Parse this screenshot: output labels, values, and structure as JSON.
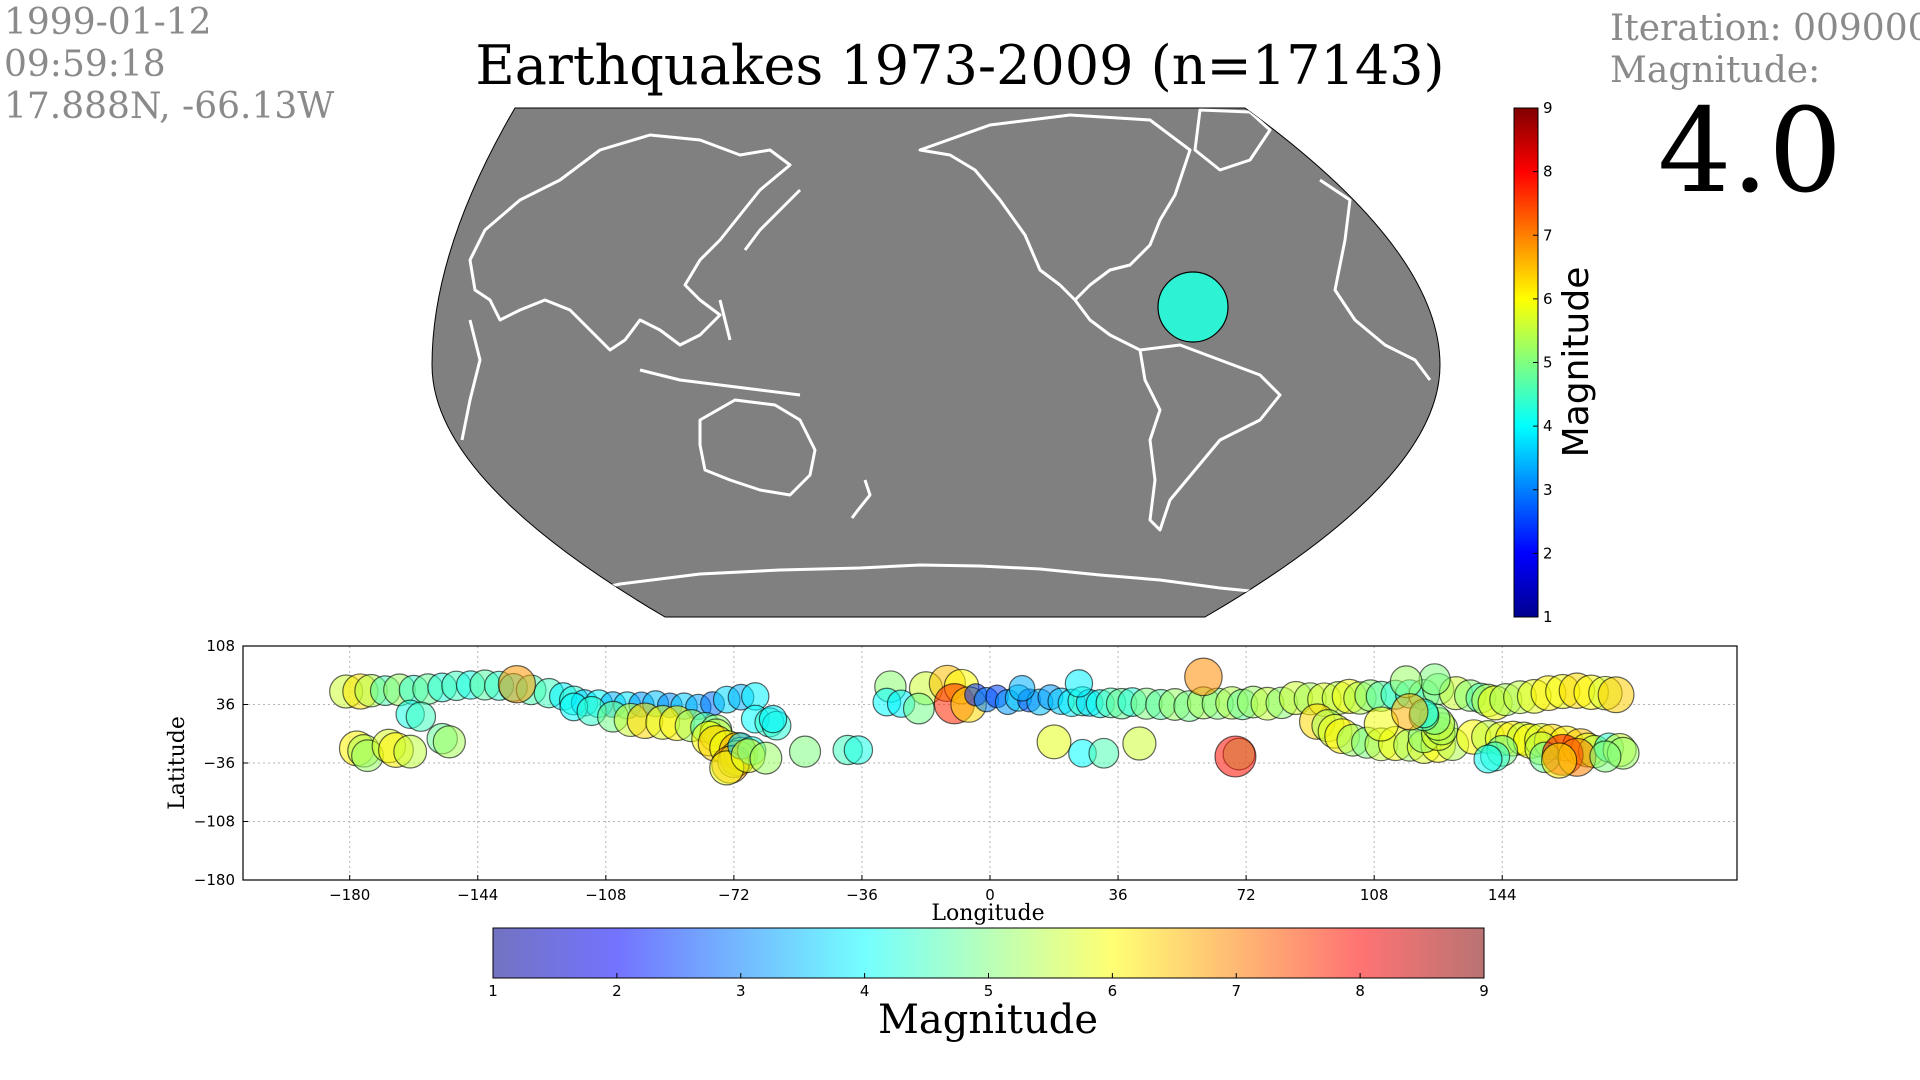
{
  "info": {
    "date": "1999-01-12",
    "time": "09:59:18",
    "location": "17.888N, -66.13W"
  },
  "title": "Earthquakes 1973-2009 (n=17143)",
  "status": {
    "iteration": "Iteration: 009000",
    "magnitude_label": "Magnitude:",
    "magnitude_value": "4.0"
  },
  "colors": {
    "ocean": "#808080",
    "coast": "#ffffff",
    "current_quake": "#2ef2d4"
  },
  "chart_data": [
    {
      "type": "map",
      "projection": "robinson",
      "center_longitude": -150,
      "current_event": {
        "lat": 17.888,
        "lon": -66.13,
        "magnitude": 4.0
      },
      "colorbar": {
        "label": "Magnitude",
        "ticks": [
          "1",
          "2",
          "3",
          "4",
          "5",
          "6",
          "7",
          "8",
          "9"
        ],
        "colormap": "jet",
        "orientation": "vertical"
      }
    },
    {
      "type": "scatter",
      "xlabel": "Longitude",
      "ylabel": "Latitude",
      "xlim": [
        -210,
        210
      ],
      "ylim": [
        -180,
        108
      ],
      "xticks": [
        -180,
        -144,
        -108,
        -72,
        -36,
        0,
        36,
        72,
        108,
        144
      ],
      "xtick_labels": [
        "−180",
        "−144",
        "−108",
        "−72",
        "−36",
        "0",
        "36",
        "72",
        "108",
        "144"
      ],
      "yticks": [
        108,
        36,
        -36,
        -108,
        -180
      ],
      "ytick_labels": [
        "108",
        "36",
        "−36",
        "−108",
        "−180"
      ],
      "grid": true,
      "points": [
        {
          "x": -181,
          "y": 52,
          "m": 5.6
        },
        {
          "x": -177,
          "y": 52,
          "m": 6.2
        },
        {
          "x": -174,
          "y": 53,
          "m": 5.4
        },
        {
          "x": -170,
          "y": 53,
          "m": 4.6
        },
        {
          "x": -166,
          "y": 54,
          "m": 5.2
        },
        {
          "x": -162,
          "y": 54,
          "m": 4.4
        },
        {
          "x": -158,
          "y": 55,
          "m": 4.8
        },
        {
          "x": -154,
          "y": 57,
          "m": 4.3
        },
        {
          "x": -150,
          "y": 59,
          "m": 4.5
        },
        {
          "x": -146,
          "y": 60,
          "m": 4.2
        },
        {
          "x": -142,
          "y": 60,
          "m": 4.7
        },
        {
          "x": -138,
          "y": 59,
          "m": 4.4
        },
        {
          "x": -134,
          "y": 57,
          "m": 4.1
        },
        {
          "x": -129,
          "y": 54,
          "m": 4.6
        },
        {
          "x": -124,
          "y": 50,
          "m": 4.5
        },
        {
          "x": -120,
          "y": 46,
          "m": 3.9
        },
        {
          "x": -117,
          "y": 41,
          "m": 4.3
        },
        {
          "x": -114,
          "y": 38,
          "m": 3.6
        },
        {
          "x": -110,
          "y": 37,
          "m": 4.0
        },
        {
          "x": -106,
          "y": 36,
          "m": 3.4
        },
        {
          "x": -102,
          "y": 35,
          "m": 3.8
        },
        {
          "x": -98,
          "y": 36,
          "m": 3.2
        },
        {
          "x": -94,
          "y": 37,
          "m": 3.5
        },
        {
          "x": -90,
          "y": 35,
          "m": 3.1
        },
        {
          "x": -86,
          "y": 34,
          "m": 3.6
        },
        {
          "x": -82,
          "y": 33,
          "m": 3.3
        },
        {
          "x": -78,
          "y": 37,
          "m": 2.9
        },
        {
          "x": -74,
          "y": 42,
          "m": 3.7
        },
        {
          "x": -70,
          "y": 45,
          "m": 3.4
        },
        {
          "x": -66,
          "y": 46,
          "m": 3.9
        },
        {
          "x": -163,
          "y": 24,
          "m": 4.2
        },
        {
          "x": -160,
          "y": 21,
          "m": 4.5
        },
        {
          "x": -117,
          "y": 33,
          "m": 4.0
        },
        {
          "x": -112,
          "y": 28,
          "m": 4.4
        },
        {
          "x": -106,
          "y": 21,
          "m": 4.9
        },
        {
          "x": -101,
          "y": 17,
          "m": 5.6
        },
        {
          "x": -97,
          "y": 16,
          "m": 6.3
        },
        {
          "x": -92,
          "y": 14,
          "m": 5.8
        },
        {
          "x": -88,
          "y": 13,
          "m": 6.1
        },
        {
          "x": -84,
          "y": 10,
          "m": 5.3
        },
        {
          "x": -80,
          "y": 8,
          "m": 4.6
        },
        {
          "x": -77,
          "y": 4,
          "m": 5.1
        },
        {
          "x": -77,
          "y": -2,
          "m": 5.5
        },
        {
          "x": -79,
          "y": -6,
          "m": 6.0
        },
        {
          "x": -77,
          "y": -12,
          "m": 6.4
        },
        {
          "x": -74,
          "y": -17,
          "m": 5.9
        },
        {
          "x": -71,
          "y": -21,
          "m": 6.6
        },
        {
          "x": -70,
          "y": -25,
          "m": 5.7
        },
        {
          "x": -71,
          "y": -30,
          "m": 6.2
        },
        {
          "x": -72,
          "y": -34,
          "m": 5.4
        },
        {
          "x": -73,
          "y": -38,
          "m": 6.8
        },
        {
          "x": -74,
          "y": -42,
          "m": 5.9
        },
        {
          "x": -70,
          "y": -15,
          "m": 3.6
        },
        {
          "x": -67,
          "y": -21,
          "m": 4.2
        },
        {
          "x": -68,
          "y": -27,
          "m": 5.8
        },
        {
          "x": -63,
          "y": -30,
          "m": 5.2
        },
        {
          "x": -66,
          "y": 18,
          "m": 4.0
        },
        {
          "x": -62,
          "y": 14,
          "m": 4.4
        },
        {
          "x": -60,
          "y": 10,
          "m": 4.3
        },
        {
          "x": -61,
          "y": 18,
          "m": 3.9
        },
        {
          "x": -52,
          "y": -22,
          "m": 5.0
        },
        {
          "x": -40,
          "y": -20,
          "m": 4.5
        },
        {
          "x": -37,
          "y": -20,
          "m": 4.2
        },
        {
          "x": -28,
          "y": 58,
          "m": 5.1
        },
        {
          "x": -18,
          "y": 56,
          "m": 5.6
        },
        {
          "x": -29,
          "y": 39,
          "m": 4.0
        },
        {
          "x": -25,
          "y": 37,
          "m": 3.9
        },
        {
          "x": -20,
          "y": 31,
          "m": 4.9
        },
        {
          "x": -12,
          "y": 62,
          "m": 6.5
        },
        {
          "x": -8,
          "y": 58,
          "m": 6.0
        },
        {
          "x": -10,
          "y": 37,
          "m": 7.7
        },
        {
          "x": -6,
          "y": 36,
          "m": 6.3
        },
        {
          "x": -4,
          "y": 48,
          "m": 2.4
        },
        {
          "x": -1,
          "y": 42,
          "m": 3.0
        },
        {
          "x": 2,
          "y": 46,
          "m": 2.5
        },
        {
          "x": 5,
          "y": 39,
          "m": 3.2
        },
        {
          "x": 8,
          "y": 44,
          "m": 3.6
        },
        {
          "x": 11,
          "y": 41,
          "m": 2.6
        },
        {
          "x": 14,
          "y": 39,
          "m": 3.5
        },
        {
          "x": 17,
          "y": 45,
          "m": 3.2
        },
        {
          "x": 20,
          "y": 40,
          "m": 3.6
        },
        {
          "x": 23,
          "y": 38,
          "m": 3.9
        },
        {
          "x": 26,
          "y": 40,
          "m": 4.4
        },
        {
          "x": 28,
          "y": 38,
          "m": 3.7
        },
        {
          "x": 31,
          "y": 37,
          "m": 4.1
        },
        {
          "x": 34,
          "y": 38,
          "m": 4.6
        },
        {
          "x": 37,
          "y": 37,
          "m": 4.8
        },
        {
          "x": 40,
          "y": 39,
          "m": 4.3
        },
        {
          "x": 44,
          "y": 37,
          "m": 5.0
        },
        {
          "x": 48,
          "y": 36,
          "m": 4.7
        },
        {
          "x": 52,
          "y": 36,
          "m": 5.2
        },
        {
          "x": 56,
          "y": 34,
          "m": 4.9
        },
        {
          "x": 60,
          "y": 38,
          "m": 5.3
        },
        {
          "x": 64,
          "y": 37,
          "m": 5.0
        },
        {
          "x": 68,
          "y": 38,
          "m": 5.4
        },
        {
          "x": 71,
          "y": 36,
          "m": 4.8
        },
        {
          "x": 74,
          "y": 39,
          "m": 5.2
        },
        {
          "x": 78,
          "y": 37,
          "m": 5.5
        },
        {
          "x": 82,
          "y": 38,
          "m": 5.1
        },
        {
          "x": 86,
          "y": 44,
          "m": 5.6
        },
        {
          "x": 90,
          "y": 43,
          "m": 5.3
        },
        {
          "x": 94,
          "y": 42,
          "m": 5.7
        },
        {
          "x": 98,
          "y": 44,
          "m": 5.5
        },
        {
          "x": 101,
          "y": 46,
          "m": 5.9
        },
        {
          "x": 104,
          "y": 44,
          "m": 5.4
        },
        {
          "x": 107,
          "y": 47,
          "m": 5.1
        },
        {
          "x": 110,
          "y": 46,
          "m": 4.7
        },
        {
          "x": 114,
          "y": 48,
          "m": 4.4
        },
        {
          "x": 118,
          "y": 49,
          "m": 4.2
        },
        {
          "x": 122,
          "y": 48,
          "m": 4.8
        },
        {
          "x": 126,
          "y": 55,
          "m": 5.0
        },
        {
          "x": 131,
          "y": 50,
          "m": 5.6
        },
        {
          "x": 135,
          "y": 47,
          "m": 5.1
        },
        {
          "x": 138,
          "y": 44,
          "m": 4.6
        },
        {
          "x": 140,
          "y": 41,
          "m": 5.4
        },
        {
          "x": 142,
          "y": 38,
          "m": 5.9
        },
        {
          "x": 145,
          "y": 42,
          "m": 5.3
        },
        {
          "x": 149,
          "y": 45,
          "m": 5.5
        },
        {
          "x": 153,
          "y": 46,
          "m": 5.8
        },
        {
          "x": 157,
          "y": 50,
          "m": 6.1
        },
        {
          "x": 161,
          "y": 52,
          "m": 5.9
        },
        {
          "x": 165,
          "y": 53,
          "m": 6.3
        },
        {
          "x": 169,
          "y": 51,
          "m": 6.0
        },
        {
          "x": 173,
          "y": 50,
          "m": 5.7
        },
        {
          "x": 176,
          "y": 48,
          "m": 6.4
        },
        {
          "x": 9,
          "y": 56,
          "m": 3.4
        },
        {
          "x": 25,
          "y": 62,
          "m": 3.9
        },
        {
          "x": 60,
          "y": 70,
          "m": 6.9
        },
        {
          "x": 125,
          "y": 67,
          "m": 5.0
        },
        {
          "x": 117,
          "y": 64,
          "m": 5.2
        },
        {
          "x": -133,
          "y": 61,
          "m": 6.8
        },
        {
          "x": -154,
          "y": -6,
          "m": 4.8
        },
        {
          "x": -152,
          "y": -10,
          "m": 5.3
        },
        {
          "x": 18,
          "y": -10,
          "m": 5.8
        },
        {
          "x": 26,
          "y": -24,
          "m": 4.0
        },
        {
          "x": 32,
          "y": -24,
          "m": 4.6
        },
        {
          "x": 42,
          "y": -12,
          "m": 5.6
        },
        {
          "x": 70,
          "y": -25,
          "m": 5.2
        },
        {
          "x": 69,
          "y": -28,
          "m": 7.9
        },
        {
          "x": 92,
          "y": 15,
          "m": 6.3
        },
        {
          "x": 95,
          "y": 10,
          "m": 5.3
        },
        {
          "x": 97,
          "y": 3,
          "m": 5.8
        },
        {
          "x": 99,
          "y": -3,
          "m": 6.1
        },
        {
          "x": 102,
          "y": -8,
          "m": 5.2
        },
        {
          "x": 106,
          "y": -11,
          "m": 5.0
        },
        {
          "x": 110,
          "y": -13,
          "m": 5.5
        },
        {
          "x": 114,
          "y": -12,
          "m": 5.9
        },
        {
          "x": 118,
          "y": -14,
          "m": 5.3
        },
        {
          "x": 122,
          "y": -16,
          "m": 5.7
        },
        {
          "x": 126,
          "y": -14,
          "m": 6.0
        },
        {
          "x": 130,
          "y": -13,
          "m": 5.4
        },
        {
          "x": 122,
          "y": -4,
          "m": 5.1
        },
        {
          "x": 126,
          "y": 0,
          "m": 5.7
        },
        {
          "x": 127,
          "y": 6,
          "m": 5.3
        },
        {
          "x": 126,
          "y": 12,
          "m": 5.5
        },
        {
          "x": 125,
          "y": 18,
          "m": 4.9
        },
        {
          "x": 122,
          "y": 22,
          "m": 4.6
        },
        {
          "x": 122,
          "y": 25,
          "m": 4.3
        },
        {
          "x": 110,
          "y": 12,
          "m": 5.9
        },
        {
          "x": 118,
          "y": 27,
          "m": 6.6
        },
        {
          "x": 136,
          "y": -4,
          "m": 6.0
        },
        {
          "x": 140,
          "y": -4,
          "m": 5.5
        },
        {
          "x": 144,
          "y": -6,
          "m": 5.8
        },
        {
          "x": 147,
          "y": -6,
          "m": 6.1
        },
        {
          "x": 150,
          "y": -6,
          "m": 5.6
        },
        {
          "x": 152,
          "y": -9,
          "m": 6.0
        },
        {
          "x": 155,
          "y": -8,
          "m": 5.7
        },
        {
          "x": 158,
          "y": -10,
          "m": 6.3
        },
        {
          "x": 162,
          "y": -12,
          "m": 6.1
        },
        {
          "x": 166,
          "y": -16,
          "m": 6.5
        },
        {
          "x": 168,
          "y": -20,
          "m": 5.8
        },
        {
          "x": 170,
          "y": -22,
          "m": 5.4
        },
        {
          "x": 174,
          "y": -17,
          "m": 4.4
        },
        {
          "x": 177,
          "y": -20,
          "m": 5.6
        },
        {
          "x": 178,
          "y": -24,
          "m": 5.2
        },
        {
          "x": 155,
          "y": -18,
          "m": 5.5
        },
        {
          "x": 144,
          "y": -21,
          "m": 4.9
        },
        {
          "x": 142,
          "y": -28,
          "m": 4.4
        },
        {
          "x": 140,
          "y": -31,
          "m": 4.1
        },
        {
          "x": 156,
          "y": -29,
          "m": 4.8
        },
        {
          "x": 161,
          "y": -26,
          "m": 7.9
        },
        {
          "x": 165,
          "y": -29,
          "m": 7.0
        },
        {
          "x": 160,
          "y": -33,
          "m": 6.2
        },
        {
          "x": 173,
          "y": -28,
          "m": 5.0
        },
        {
          "x": -178,
          "y": -18,
          "m": 6.1
        },
        {
          "x": -176,
          "y": -21,
          "m": 5.4
        },
        {
          "x": -175,
          "y": -27,
          "m": 5.2
        },
        {
          "x": -169,
          "y": -15,
          "m": 5.7
        },
        {
          "x": -167,
          "y": -20,
          "m": 6.1
        },
        {
          "x": -163,
          "y": -22,
          "m": 5.5
        }
      ],
      "colorbar": {
        "label": "Magnitude",
        "ticks": [
          "1",
          "2",
          "3",
          "4",
          "5",
          "6",
          "7",
          "8",
          "9"
        ],
        "colormap": "jet",
        "alpha": 0.55,
        "orientation": "horizontal"
      }
    }
  ]
}
